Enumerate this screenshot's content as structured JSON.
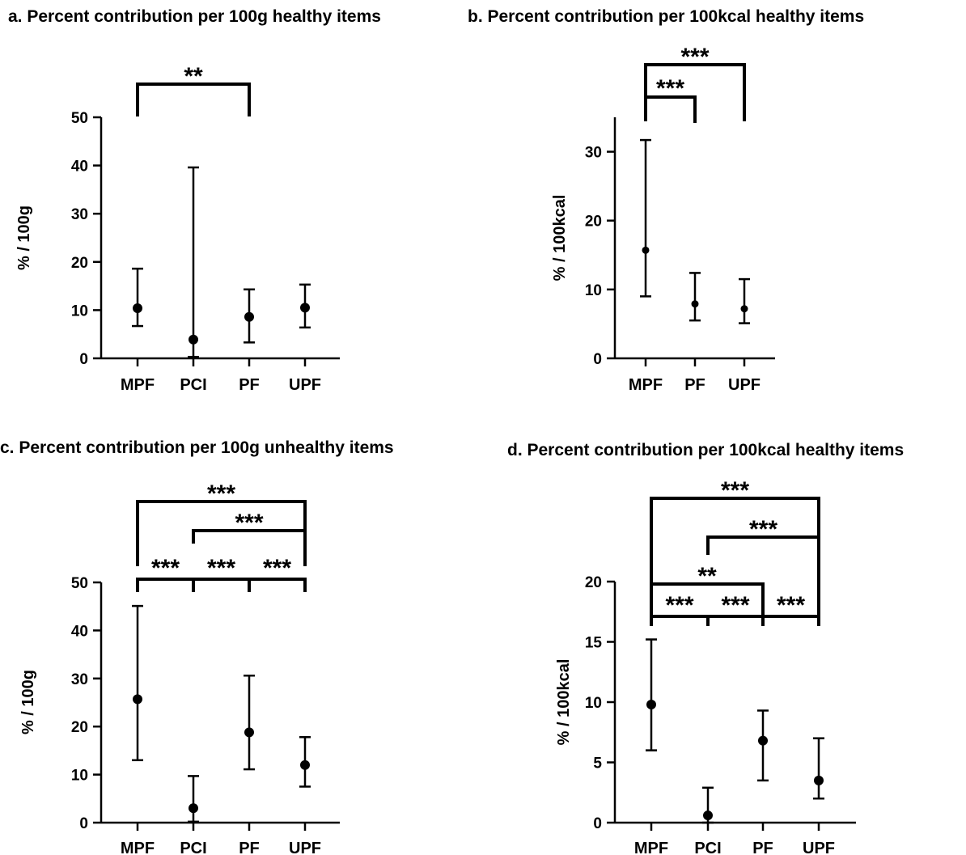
{
  "chart_data": [
    {
      "type": "scatter",
      "title": "a. Percent contribution per 100g healthy items",
      "ylabel": "% / 100g",
      "categories": [
        "MPF",
        "PCI",
        "PF",
        "UPF"
      ],
      "values": [
        10.4,
        3.9,
        8.6,
        10.5
      ],
      "error_low": [
        6.7,
        0.3,
        3.3,
        6.4
      ],
      "error_high": [
        18.6,
        39.6,
        14.3,
        15.3
      ],
      "ylim": [
        0,
        50
      ],
      "yticks": [
        "0",
        "10",
        "20",
        "30",
        "40",
        "50"
      ],
      "significance": [
        {
          "from": "MPF",
          "to": "PF",
          "label": "**"
        }
      ]
    },
    {
      "type": "scatter",
      "title": "b. Percent contribution per 100kcal healthy items",
      "ylabel": "% / 100kcal",
      "categories": [
        "MPF",
        "PF",
        "UPF"
      ],
      "values": [
        15.7,
        7.9,
        7.2
      ],
      "error_low": [
        9.0,
        5.5,
        5.1
      ],
      "error_high": [
        31.7,
        12.4,
        11.5
      ],
      "ylim": [
        0,
        35
      ],
      "yticks": [
        "0",
        "10",
        "20",
        "30"
      ],
      "significance": [
        {
          "from": "MPF",
          "to": "PF",
          "label": "***"
        },
        {
          "from": "MPF",
          "to": "UPF",
          "label": "***"
        }
      ]
    },
    {
      "type": "scatter",
      "title": "c. Percent contribution per 100g unhealthy items",
      "ylabel": "% / 100g",
      "categories": [
        "MPF",
        "PCI",
        "PF",
        "UPF"
      ],
      "values": [
        25.7,
        3.0,
        18.8,
        12.0
      ],
      "error_low": [
        13.0,
        0.2,
        11.1,
        7.5
      ],
      "error_high": [
        45.1,
        9.7,
        30.6,
        17.8
      ],
      "ylim": [
        0,
        50
      ],
      "yticks": [
        "0",
        "10",
        "20",
        "30",
        "40",
        "50"
      ],
      "significance": [
        {
          "from": "MPF",
          "to": "PCI",
          "label": "***"
        },
        {
          "from": "PCI",
          "to": "PF",
          "label": "***"
        },
        {
          "from": "PF",
          "to": "UPF",
          "label": "***"
        },
        {
          "from": "PCI",
          "to": "UPF",
          "label": "***"
        },
        {
          "from": "MPF",
          "to": "UPF",
          "label": "***"
        }
      ]
    },
    {
      "type": "scatter",
      "title": "d. Percent contribution per 100kcal healthy items",
      "ylabel": "% / 100kcal",
      "categories": [
        "MPF",
        "PCI",
        "PF",
        "UPF"
      ],
      "values": [
        9.8,
        0.6,
        6.8,
        3.5
      ],
      "error_low": [
        6.0,
        0.0,
        3.5,
        2.0
      ],
      "error_high": [
        15.2,
        2.9,
        9.3,
        7.0
      ],
      "ylim": [
        0,
        20
      ],
      "yticks": [
        "0",
        "5",
        "10",
        "15",
        "20"
      ],
      "significance": [
        {
          "from": "MPF",
          "to": "PCI",
          "label": "***"
        },
        {
          "from": "PCI",
          "to": "PF",
          "label": "***"
        },
        {
          "from": "PF",
          "to": "UPF",
          "label": "***"
        },
        {
          "from": "MPF",
          "to": "PF",
          "label": "**"
        },
        {
          "from": "PCI",
          "to": "UPF",
          "label": "***"
        },
        {
          "from": "MPF",
          "to": "UPF",
          "label": "***"
        }
      ]
    }
  ]
}
